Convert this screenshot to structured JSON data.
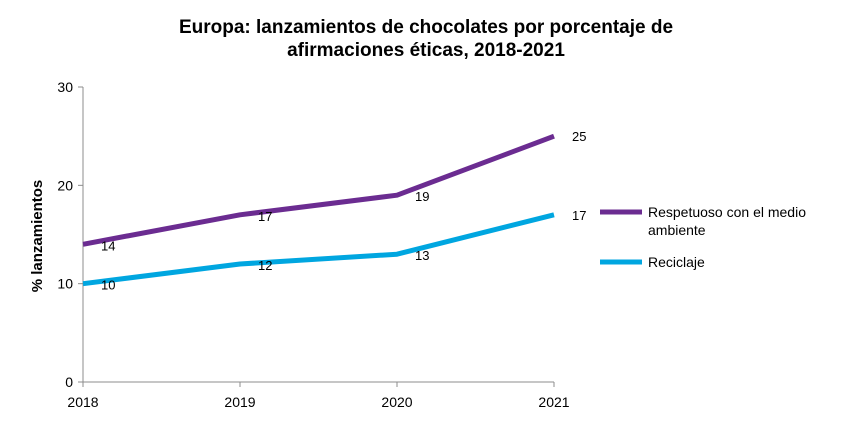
{
  "chart_data": {
    "type": "line",
    "title": {
      "line1": "Europa: lanzamientos de chocolates por porcentaje de",
      "line2": "afirmaciones éticas, 2018-2021"
    },
    "xlabel": "",
    "ylabel": "% lanzamientos",
    "x": [
      "2018",
      "2019",
      "2020",
      "2021"
    ],
    "ylim": [
      0,
      30
    ],
    "yticks": [
      0,
      10,
      20,
      30
    ],
    "grid": false,
    "legend_position": "right",
    "series": [
      {
        "name": "Respetuoso con el medio ambiente",
        "name_lines": [
          "Respetuoso con el medio",
          "ambiente"
        ],
        "values": [
          14,
          17,
          19,
          25
        ],
        "color": "#6b2c91"
      },
      {
        "name": "Reciclaje",
        "name_lines": [
          "Reciclaje"
        ],
        "values": [
          10,
          12,
          13,
          17
        ],
        "color": "#00a6e0"
      }
    ]
  }
}
